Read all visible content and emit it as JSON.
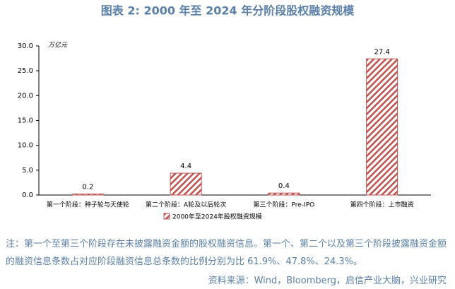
{
  "chart_data": {
    "type": "bar",
    "title": "图表 2:  2000 年至 2024 年分阶段股权融资规模",
    "y_unit_label": "万亿元",
    "categories": [
      "第一个阶段：种子轮与天使轮",
      "第二个阶段：A轮及以后轮次",
      "第三个阶段：Pre-IPO",
      "第四个阶段：上市融资"
    ],
    "series": [
      {
        "name": "2000年至2024年股权融资规模",
        "color": "#c0504d",
        "values": [
          0.2,
          4.4,
          0.4,
          27.4
        ]
      }
    ],
    "ylim": [
      0,
      30
    ],
    "yticks": [
      {
        "value": 0,
        "label": "0.0"
      },
      {
        "value": 5,
        "label": "5.0"
      },
      {
        "value": 10,
        "label": "10.0"
      },
      {
        "value": 15,
        "label": "15.0"
      },
      {
        "value": 20,
        "label": "20.0"
      },
      {
        "value": 25,
        "label": "25.0"
      },
      {
        "value": 30,
        "label": "30.0"
      }
    ],
    "grid": false,
    "legend": "bottom"
  },
  "note": "注：第一个至第三个阶段存在未披露融资金额的股权融资信息。第一个、第二个以及第三个阶段披露融资金额的融资信息条数占对应阶段融资信息总条数的比例分别为比 61.9%、47.8%、24.3%。",
  "source": "资料来源：Wind，Bloomberg，启信产业大脑，兴业研究"
}
